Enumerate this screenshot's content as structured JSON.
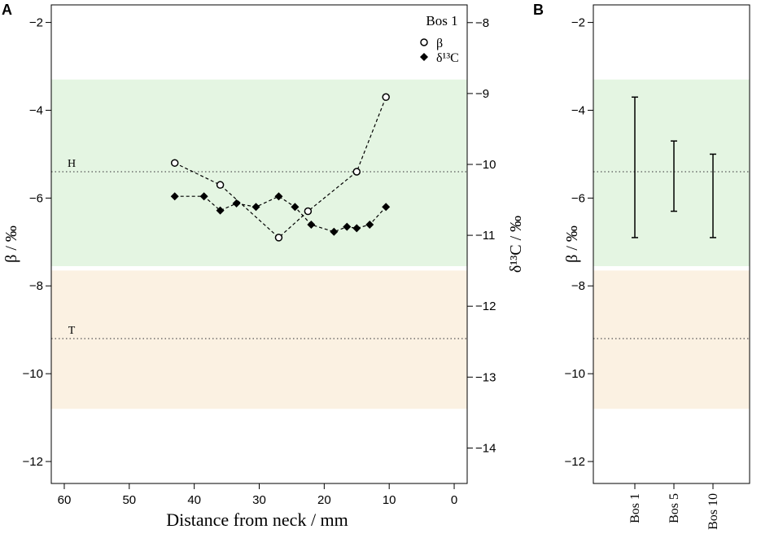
{
  "colors": {
    "green_band": "#e4f5e2",
    "tan_band": "#fbf1e2",
    "axis": "#000000"
  },
  "chart_data": [
    {
      "panel_label": "A",
      "type": "line",
      "title": "",
      "legend_title": "Bos 1",
      "legend_position": "top-right",
      "xlabel": "Distance from neck / mm",
      "ylabel": "β / ‰",
      "y2label": "δ¹³C / ‰",
      "xlim": [
        62,
        -2
      ],
      "ylim": [
        -12.5,
        -1.6
      ],
      "y2lim": [
        -14.5,
        -7.75
      ],
      "xticks": [
        "60",
        "50",
        "40",
        "30",
        "20",
        "10",
        "0"
      ],
      "yticks": [
        "−2",
        "−4",
        "−6",
        "−8",
        "−10",
        "−12"
      ],
      "y2ticks": [
        "−8",
        "−9",
        "−10",
        "−11",
        "−12",
        "−13",
        "−14"
      ],
      "bands": [
        {
          "name": "green",
          "y_from": -3.3,
          "y_to": -7.55
        },
        {
          "name": "tan",
          "y_from": -7.65,
          "y_to": -10.8
        }
      ],
      "reference_lines": [
        {
          "label": "H",
          "y": -5.4
        },
        {
          "label": "T",
          "y": -9.2
        }
      ],
      "series": [
        {
          "name": "β",
          "marker": "open-circle",
          "axis": "left",
          "x": [
            43,
            36,
            27,
            22.5,
            15,
            10.5
          ],
          "values": [
            -5.2,
            -5.7,
            -6.9,
            -6.3,
            -5.4,
            -3.7
          ]
        },
        {
          "name": "δ13C",
          "legend_label": "δ¹³C",
          "marker": "filled-diamond",
          "axis": "right",
          "x": [
            43,
            38.5,
            36,
            33.5,
            30.5,
            27,
            24.5,
            22,
            18.5,
            16.5,
            15,
            13,
            10.5
          ],
          "values": [
            -10.45,
            -10.45,
            -10.65,
            -10.55,
            -10.6,
            -10.45,
            -10.6,
            -10.85,
            -10.95,
            -10.88,
            -10.9,
            -10.85,
            -10.6
          ]
        }
      ]
    },
    {
      "panel_label": "B",
      "type": "errorbar",
      "title": "",
      "xlabel": "",
      "ylabel": "β / ‰",
      "ylim": [
        -12.5,
        -1.6
      ],
      "yticks": [
        "−2",
        "−4",
        "−6",
        "−8",
        "−10",
        "−12"
      ],
      "categories": [
        "Bos 1",
        "Bos 5",
        "Bos 10"
      ],
      "ranges": [
        {
          "category": "Bos 1",
          "max": -3.7,
          "min": -6.9
        },
        {
          "category": "Bos 5",
          "max": -4.7,
          "min": -6.3
        },
        {
          "category": "Bos 10",
          "max": -5.0,
          "min": -6.9
        }
      ],
      "bands": [
        {
          "name": "green",
          "y_from": -3.3,
          "y_to": -7.55
        },
        {
          "name": "tan",
          "y_from": -7.65,
          "y_to": -10.8
        }
      ],
      "reference_lines": [
        {
          "y": -5.4
        },
        {
          "y": -9.2
        }
      ]
    }
  ]
}
